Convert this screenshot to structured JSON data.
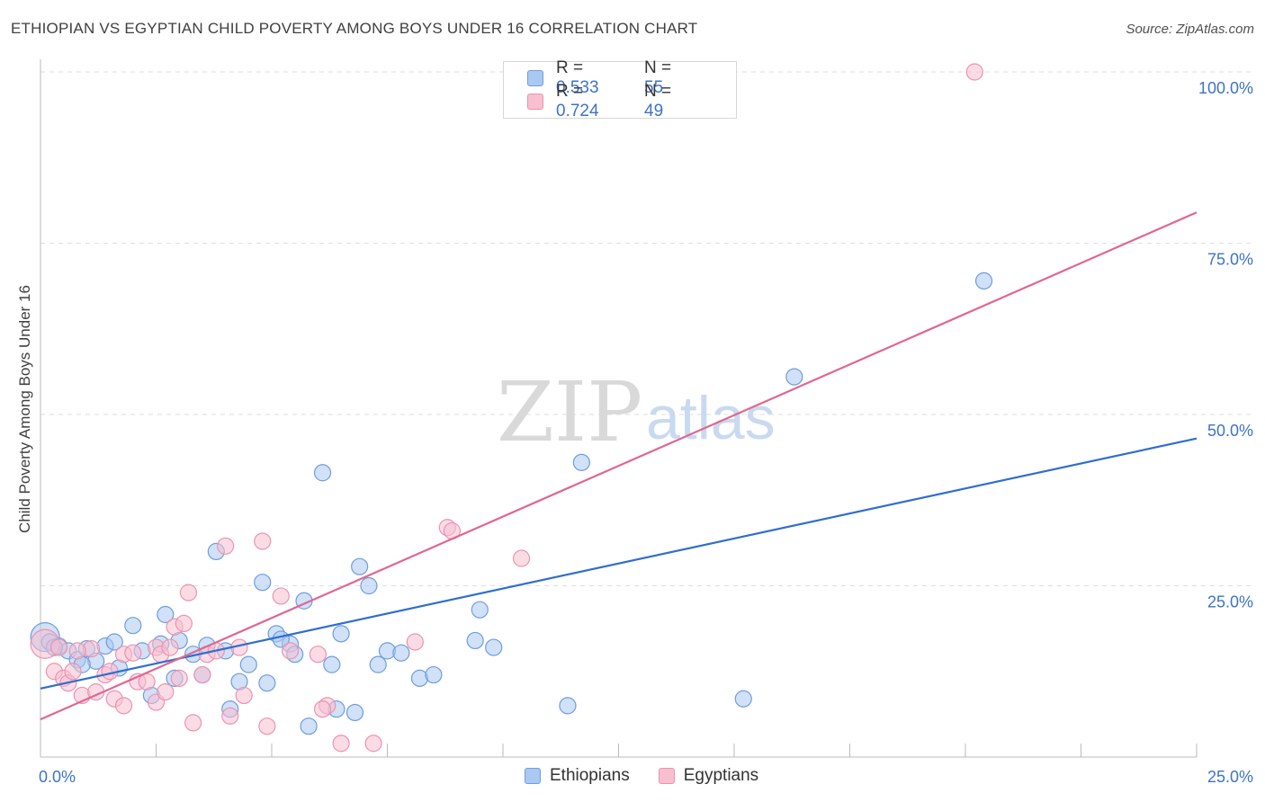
{
  "title": "ETHIOPIAN VS EGYPTIAN CHILD POVERTY AMONG BOYS UNDER 16 CORRELATION CHART",
  "source": "Source: ZipAtlas.com",
  "watermark": {
    "zip": "ZIP",
    "atlas": "atlas"
  },
  "colors": {
    "ethiopians_fill": "#a9c8f2",
    "ethiopians_stroke": "#6f9ddd",
    "ethiopians_line": "#2f6ecf",
    "egyptians_fill": "#f8bfd0",
    "egyptians_stroke": "#ec93b0",
    "egyptians_line": "#e0678f",
    "tick": "#3d73c7"
  },
  "legend_top": {
    "rows": [
      {
        "r_label": "R =",
        "r_value": "0.533",
        "n_label": "N =",
        "n_value": "55",
        "series": "ethiopians"
      },
      {
        "r_label": "R =",
        "r_value": "0.724",
        "n_label": "N =",
        "n_value": "49",
        "series": "egyptians"
      }
    ]
  },
  "legend_bottom": [
    {
      "label": "Ethiopians",
      "series": "ethiopians"
    },
    {
      "label": "Egyptians",
      "series": "egyptians"
    }
  ],
  "chart_data": {
    "type": "scatter",
    "title": "ETHIOPIAN VS EGYPTIAN CHILD POVERTY AMONG BOYS UNDER 16 CORRELATION CHART",
    "xlabel": "",
    "ylabel": "Child Poverty Among Boys Under 16",
    "xlim": [
      0,
      25
    ],
    "ylim": [
      0,
      100
    ],
    "x_tick_labels": [
      {
        "value": 0,
        "label": "0.0%"
      },
      {
        "value": 25,
        "label": "25.0%"
      }
    ],
    "y_tick_labels": [
      {
        "value": 25,
        "label": "25.0%"
      },
      {
        "value": 50,
        "label": "50.0%"
      },
      {
        "value": 75,
        "label": "75.0%"
      },
      {
        "value": 100,
        "label": "100.0%"
      }
    ],
    "grid": true,
    "legend_position": "top-center",
    "series": [
      {
        "name": "Ethiopians",
        "key": "ethiopians",
        "R": 0.533,
        "N": 55,
        "trend": {
          "x": [
            0,
            25
          ],
          "y": [
            10.0,
            46.5
          ]
        },
        "points": [
          {
            "x": 0.1,
            "y": 17.5,
            "s": "lg"
          },
          {
            "x": 0.2,
            "y": 16.8
          },
          {
            "x": 0.4,
            "y": 16.2
          },
          {
            "x": 0.6,
            "y": 15.5
          },
          {
            "x": 0.8,
            "y": 14.2
          },
          {
            "x": 1.0,
            "y": 15.8
          },
          {
            "x": 1.2,
            "y": 14.0
          },
          {
            "x": 1.4,
            "y": 16.2
          },
          {
            "x": 1.6,
            "y": 16.8
          },
          {
            "x": 1.7,
            "y": 13.0
          },
          {
            "x": 2.0,
            "y": 19.2
          },
          {
            "x": 2.2,
            "y": 15.5
          },
          {
            "x": 2.4,
            "y": 9.0
          },
          {
            "x": 2.6,
            "y": 16.5
          },
          {
            "x": 2.7,
            "y": 20.8
          },
          {
            "x": 2.9,
            "y": 11.5
          },
          {
            "x": 3.0,
            "y": 17.0
          },
          {
            "x": 3.3,
            "y": 15.0
          },
          {
            "x": 3.5,
            "y": 12.0
          },
          {
            "x": 3.6,
            "y": 16.3
          },
          {
            "x": 3.8,
            "y": 30.0
          },
          {
            "x": 4.0,
            "y": 15.5
          },
          {
            "x": 4.1,
            "y": 7.0
          },
          {
            "x": 4.3,
            "y": 11.0
          },
          {
            "x": 4.5,
            "y": 13.5
          },
          {
            "x": 4.8,
            "y": 25.5
          },
          {
            "x": 4.9,
            "y": 10.8
          },
          {
            "x": 5.1,
            "y": 18.0
          },
          {
            "x": 5.4,
            "y": 16.5
          },
          {
            "x": 5.5,
            "y": 15.0
          },
          {
            "x": 5.7,
            "y": 22.8
          },
          {
            "x": 5.8,
            "y": 4.5
          },
          {
            "x": 6.1,
            "y": 41.5
          },
          {
            "x": 6.3,
            "y": 13.5
          },
          {
            "x": 6.4,
            "y": 7.0
          },
          {
            "x": 6.5,
            "y": 18.0
          },
          {
            "x": 6.8,
            "y": 6.5
          },
          {
            "x": 6.9,
            "y": 27.8
          },
          {
            "x": 7.1,
            "y": 25.0
          },
          {
            "x": 7.3,
            "y": 13.5
          },
          {
            "x": 7.5,
            "y": 15.5
          },
          {
            "x": 7.8,
            "y": 15.2
          },
          {
            "x": 8.2,
            "y": 11.5
          },
          {
            "x": 8.5,
            "y": 12.0
          },
          {
            "x": 9.4,
            "y": 17.0
          },
          {
            "x": 9.5,
            "y": 21.5
          },
          {
            "x": 9.8,
            "y": 16.0
          },
          {
            "x": 11.4,
            "y": 7.5
          },
          {
            "x": 11.7,
            "y": 43.0
          },
          {
            "x": 15.2,
            "y": 8.5
          },
          {
            "x": 16.3,
            "y": 55.5
          },
          {
            "x": 20.4,
            "y": 69.5
          },
          {
            "x": 0.3,
            "y": 16.0
          },
          {
            "x": 0.9,
            "y": 13.5
          },
          {
            "x": 5.2,
            "y": 17.2
          }
        ]
      },
      {
        "name": "Egyptians",
        "key": "egyptians",
        "R": 0.724,
        "N": 49,
        "trend": {
          "x": [
            0,
            25
          ],
          "y": [
            5.5,
            79.5
          ]
        },
        "points": [
          {
            "x": 0.1,
            "y": 16.5,
            "s": "lg"
          },
          {
            "x": 0.3,
            "y": 12.5
          },
          {
            "x": 0.4,
            "y": 16.0
          },
          {
            "x": 0.5,
            "y": 11.5
          },
          {
            "x": 0.6,
            "y": 10.8
          },
          {
            "x": 0.7,
            "y": 12.5
          },
          {
            "x": 0.9,
            "y": 9.0
          },
          {
            "x": 1.1,
            "y": 15.8
          },
          {
            "x": 1.2,
            "y": 9.5
          },
          {
            "x": 1.4,
            "y": 12.0
          },
          {
            "x": 1.6,
            "y": 8.5
          },
          {
            "x": 1.8,
            "y": 15.0
          },
          {
            "x": 1.8,
            "y": 7.5
          },
          {
            "x": 2.0,
            "y": 15.2
          },
          {
            "x": 2.1,
            "y": 11.0
          },
          {
            "x": 2.3,
            "y": 11.0
          },
          {
            "x": 2.5,
            "y": 16.0
          },
          {
            "x": 2.5,
            "y": 8.0
          },
          {
            "x": 2.6,
            "y": 15.0
          },
          {
            "x": 2.7,
            "y": 9.5
          },
          {
            "x": 2.8,
            "y": 16.0
          },
          {
            "x": 2.9,
            "y": 19.0
          },
          {
            "x": 3.1,
            "y": 19.5
          },
          {
            "x": 3.2,
            "y": 24.0
          },
          {
            "x": 3.3,
            "y": 5.0
          },
          {
            "x": 3.5,
            "y": 12.0
          },
          {
            "x": 3.6,
            "y": 15.0
          },
          {
            "x": 3.8,
            "y": 15.5
          },
          {
            "x": 4.0,
            "y": 30.8
          },
          {
            "x": 4.1,
            "y": 6.0
          },
          {
            "x": 4.3,
            "y": 16.0
          },
          {
            "x": 4.4,
            "y": 9.0
          },
          {
            "x": 4.8,
            "y": 31.5
          },
          {
            "x": 4.9,
            "y": 4.5
          },
          {
            "x": 5.2,
            "y": 23.5
          },
          {
            "x": 5.4,
            "y": 15.5
          },
          {
            "x": 6.0,
            "y": 15.0
          },
          {
            "x": 6.2,
            "y": 7.5
          },
          {
            "x": 6.5,
            "y": 2.0
          },
          {
            "x": 7.2,
            "y": 2.0
          },
          {
            "x": 8.1,
            "y": 16.8
          },
          {
            "x": 8.8,
            "y": 33.5
          },
          {
            "x": 8.9,
            "y": 33.0
          },
          {
            "x": 10.4,
            "y": 29.0
          },
          {
            "x": 20.2,
            "y": 100.0
          },
          {
            "x": 0.8,
            "y": 15.5
          },
          {
            "x": 1.5,
            "y": 12.5
          },
          {
            "x": 3.0,
            "y": 11.5
          },
          {
            "x": 6.1,
            "y": 7.0
          }
        ]
      }
    ]
  }
}
